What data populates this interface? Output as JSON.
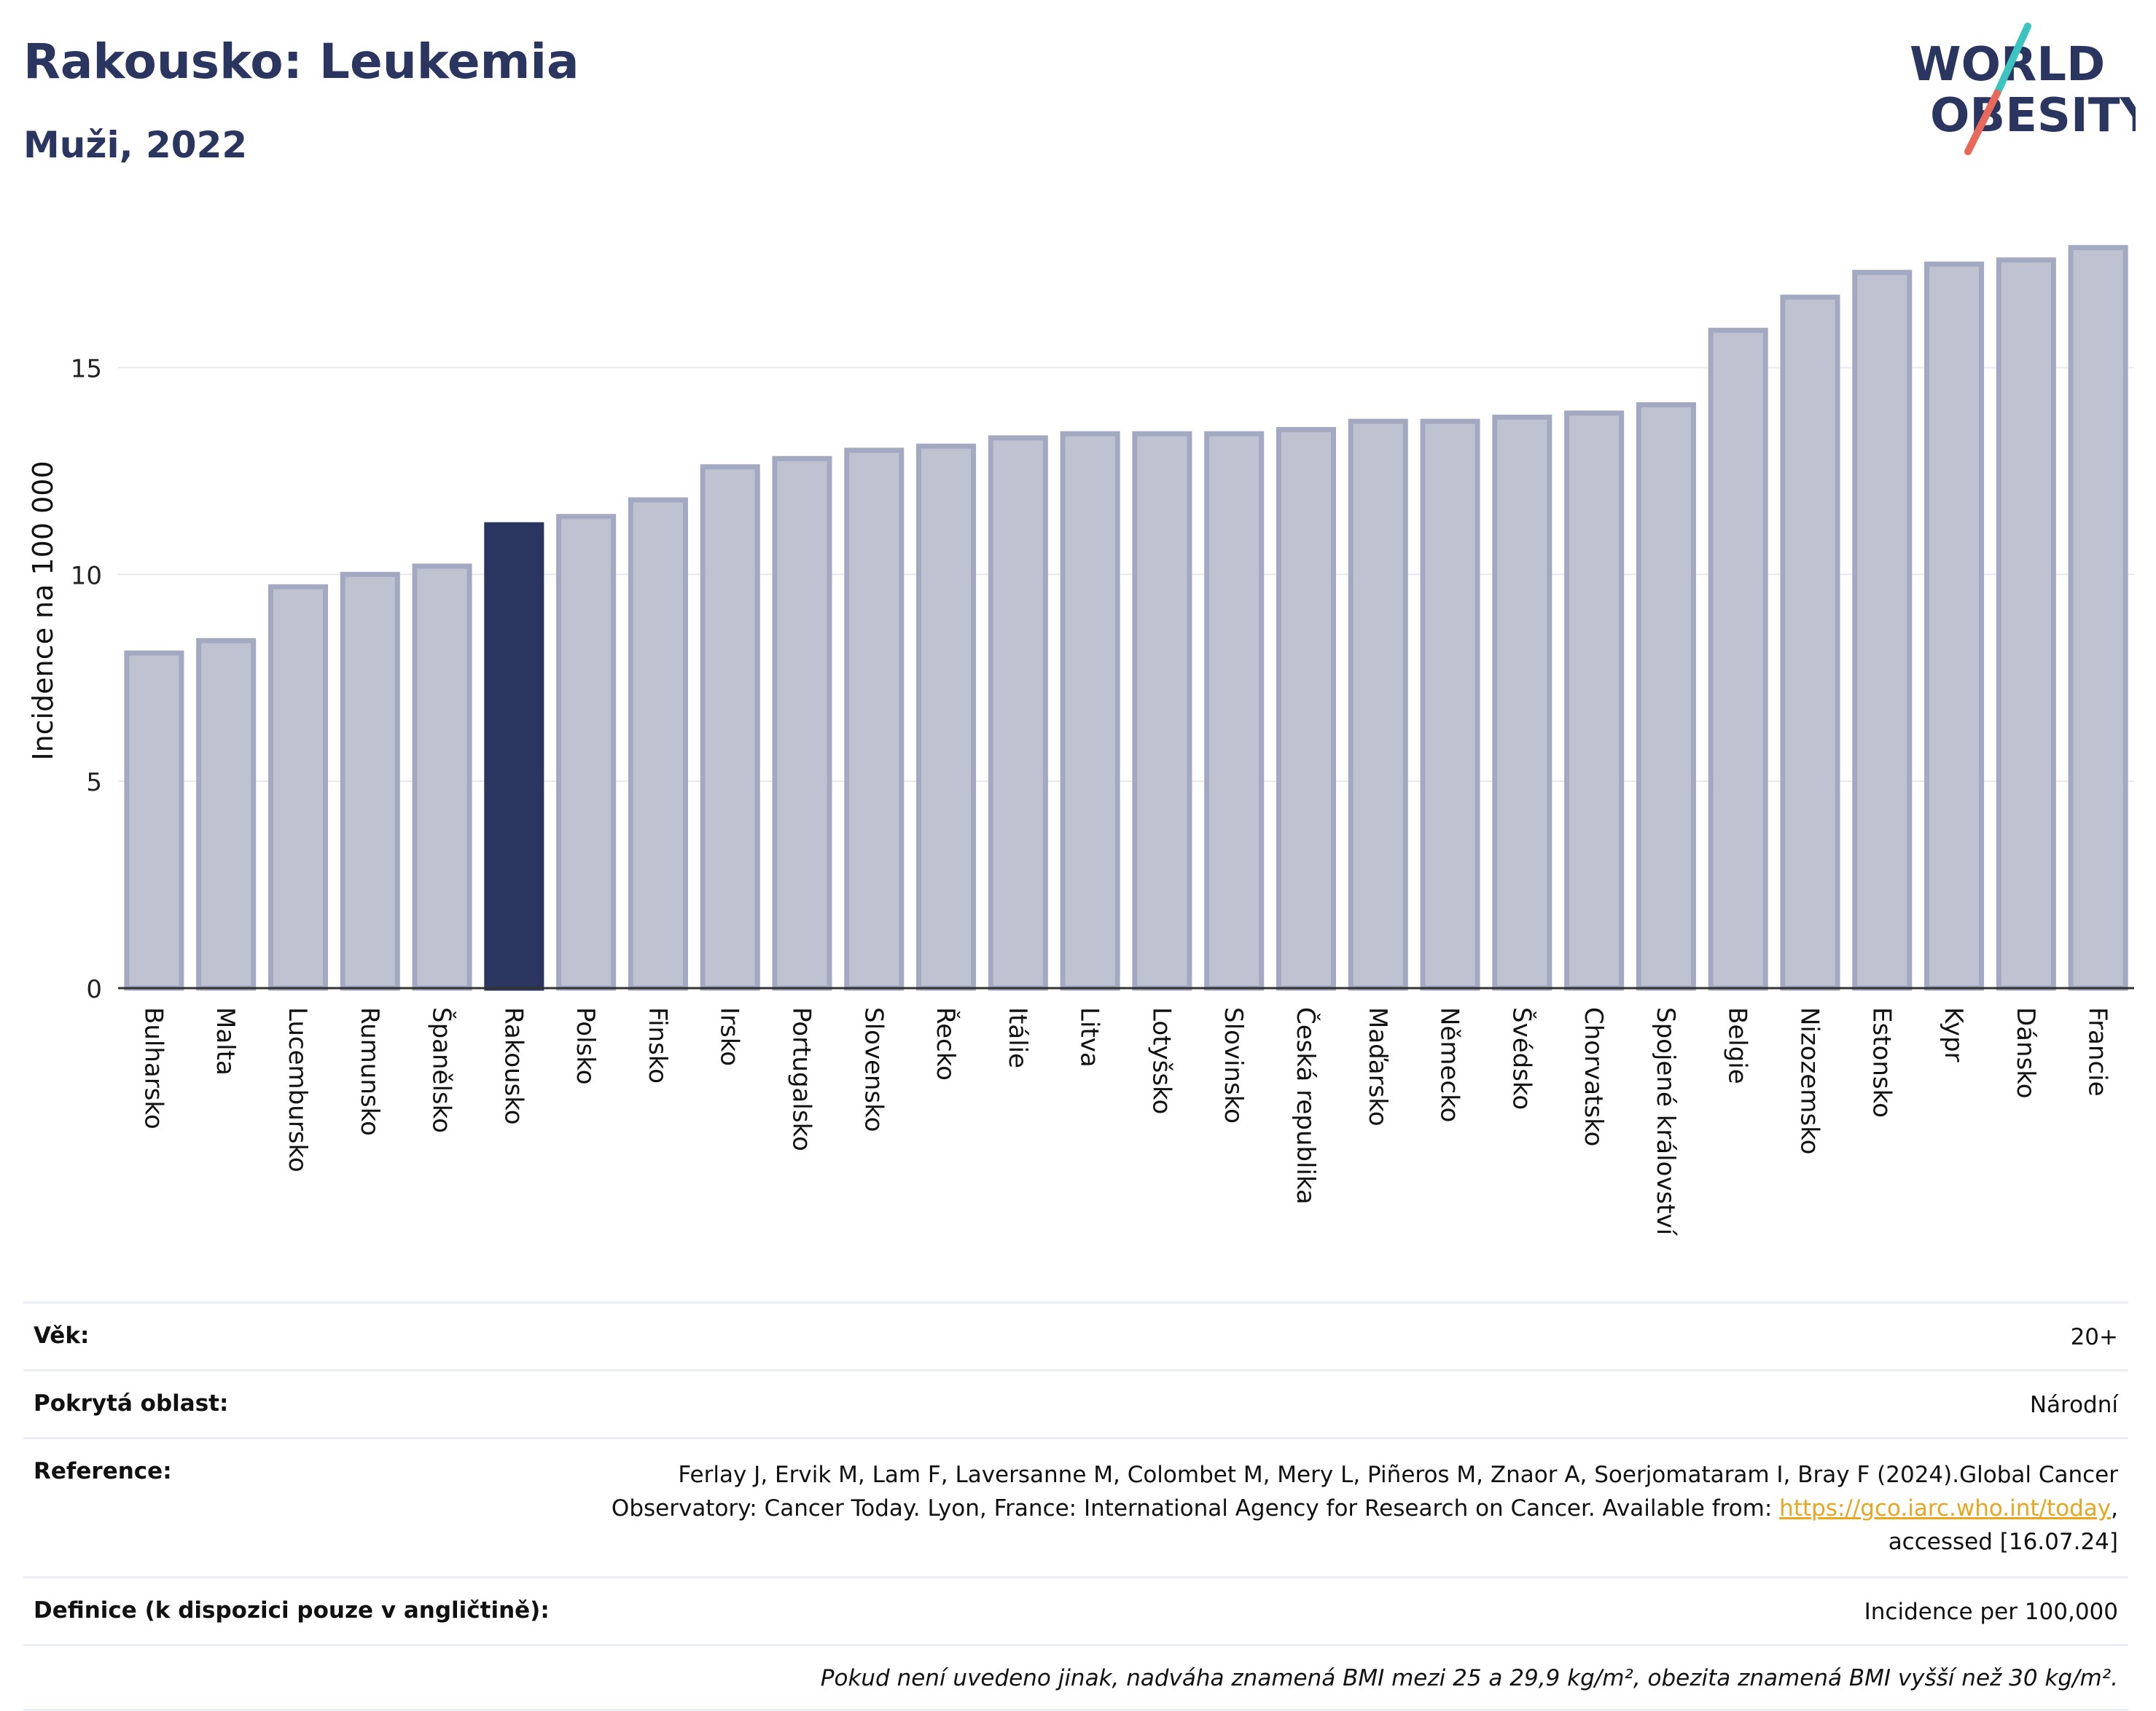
{
  "header": {
    "title": "Rakousko: Leukemia",
    "subtitle": "Muži, 2022"
  },
  "logo": {
    "line1": "WORLD",
    "line2": "OBESITY"
  },
  "colors": {
    "bar": "#bfc3d1",
    "bar_border": "#a3a9c0",
    "highlight": "#2a3560",
    "grid": "#e7e9ef",
    "axis": "#333333",
    "link": "#e8a61e"
  },
  "chart_data": {
    "type": "bar",
    "ylabel": "Incidence na 100 000",
    "ylim": [
      0,
      18.6
    ],
    "yticks": [
      0,
      5,
      10,
      15
    ],
    "grid": true,
    "highlight": "Rakousko",
    "categories": [
      "Bulharsko",
      "Malta",
      "Lucembursko",
      "Rumunsko",
      "Španělsko",
      "Rakousko",
      "Polsko",
      "Finsko",
      "Irsko",
      "Portugalsko",
      "Slovensko",
      "Řecko",
      "Itálie",
      "Litva",
      "Lotyšsko",
      "Slovinsko",
      "Česká republika",
      "Maďarsko",
      "Německo",
      "Švédsko",
      "Chorvatsko",
      "Spojené království",
      "Belgie",
      "Nizozemsko",
      "Estonsko",
      "Kypr",
      "Dánsko",
      "Francie"
    ],
    "values": [
      8.1,
      8.4,
      9.7,
      10.0,
      10.2,
      11.2,
      11.4,
      11.8,
      12.6,
      12.8,
      13.0,
      13.1,
      13.3,
      13.4,
      13.4,
      13.4,
      13.5,
      13.7,
      13.7,
      13.8,
      13.9,
      14.1,
      15.9,
      16.7,
      17.3,
      17.5,
      17.6,
      17.9
    ]
  },
  "info": {
    "age_label": "Věk:",
    "age_value": "20+",
    "area_label": "Pokrytá oblast:",
    "area_value": "Národní",
    "ref_label": "Reference:",
    "ref_line1": "Ferlay J, Ervik M, Lam F, Laversanne M, Colombet M, Mery L, Piñeros M, Znaor A, Soerjomataram I, Bray F (2024).Global Cancer",
    "ref_line2": "Observatory: Cancer Today. Lyon, France: International Agency for Research on Cancer. Available from:",
    "ref_link": "https://gco.iarc.who.int/today",
    "ref_line3": "accessed [16.07.24]",
    "def_label": "Definice (k dispozici pouze v angličtině):",
    "def_value": "Incidence per 100,000",
    "note": "Pokud není uvedeno jinak, nadváha znamená BMI mezi 25 a 29,9 kg/m², obezita znamená BMI vyšší než 30 kg/m²."
  }
}
